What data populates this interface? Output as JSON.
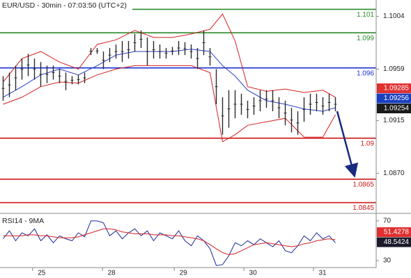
{
  "chart_data": [
    {
      "type": "ohlc",
      "title": "EUR/USD - 30min - 07:03:50 (UTC+2)",
      "xlim": [
        0,
        120
      ],
      "ylim": [
        1.0837,
        1.1018
      ],
      "yticks": [
        1.1004,
        1.0959,
        1.0915,
        {
          "value": 1.087,
          "label": "1.0870"
        }
      ],
      "xticks": [
        {
          "value": 10.4,
          "label": "25"
        },
        {
          "value": 32.7,
          "label": "28"
        },
        {
          "value": 55.6,
          "label": "29"
        },
        {
          "value": 77.8,
          "label": "30"
        },
        {
          "value": 100,
          "label": "31"
        }
      ],
      "color": "#2a2a2a",
      "x": [
        1,
        3,
        5,
        7,
        9,
        11,
        13,
        15,
        17,
        19,
        21,
        23,
        25,
        27,
        29,
        31,
        33,
        35,
        37,
        39,
        41,
        43,
        45,
        47,
        49,
        51,
        53,
        55,
        57,
        59,
        61,
        63,
        65,
        67,
        69,
        71,
        73,
        75,
        77,
        79,
        81,
        83,
        85,
        87,
        89,
        91,
        93,
        95,
        97,
        99,
        101,
        103,
        105,
        107
      ],
      "high": [
        1.0953,
        1.0956,
        1.0962,
        1.0968,
        1.0972,
        1.0968,
        1.0965,
        1.0962,
        1.0962,
        1.0959,
        1.0956,
        1.0953,
        1.0954,
        1.0956,
        1.0977,
        1.0977,
        1.0974,
        1.0977,
        1.098,
        1.0983,
        1.0983,
        1.0989,
        1.0992,
        1.0986,
        1.0983,
        1.098,
        1.0977,
        1.0978,
        1.0983,
        1.0982,
        1.098,
        1.0977,
        1.0992,
        1.0977,
        1.0959,
        1.0935,
        1.0941,
        1.0941,
        1.0938,
        1.0932,
        1.0935,
        1.0941,
        1.0941,
        1.0941,
        1.0935,
        1.0932,
        1.0926,
        1.0923,
        1.0935,
        1.0938,
        1.0938,
        1.0935,
        1.0938,
        1.0935
      ],
      "low": [
        1.0932,
        1.0935,
        1.0941,
        1.095,
        1.0953,
        1.095,
        1.0944,
        1.0947,
        1.095,
        1.0947,
        1.0941,
        1.0946,
        1.0946,
        1.0947,
        1.0971,
        1.0972,
        1.0959,
        1.0965,
        1.0968,
        1.0965,
        1.0968,
        1.0974,
        1.0977,
        1.0962,
        1.0968,
        1.0968,
        1.0968,
        1.0971,
        1.0971,
        1.0971,
        1.0968,
        1.0959,
        1.0971,
        1.0962,
        1.0929,
        1.0903,
        1.0909,
        1.0917,
        1.092,
        1.0917,
        1.092,
        1.0923,
        1.0926,
        1.0923,
        1.0917,
        1.0911,
        1.0905,
        1.0903,
        1.0914,
        1.092,
        1.0923,
        1.092,
        1.0923,
        1.0923
      ],
      "overlays": {
        "x": [
          1,
          7,
          13,
          19,
          25,
          31,
          37,
          43,
          49,
          55,
          61,
          67,
          71,
          75,
          79,
          85,
          91,
          97,
          103,
          107
        ],
        "series": [
          {
            "color": "#d42020",
            "values": [
              1.0948,
              1.0968,
              1.0974,
              1.0965,
              1.0959,
              1.098,
              1.0984,
              1.0992,
              1.0986,
              1.0986,
              1.0989,
              1.0993,
              1.1006,
              1.0983,
              1.0944,
              1.094,
              1.0942,
              1.0939,
              1.0941,
              1.0935
            ]
          },
          {
            "color": "#d42020",
            "values": [
              1.0929,
              1.0935,
              1.0944,
              1.0948,
              1.0947,
              1.0954,
              1.0959,
              1.0962,
              1.0962,
              1.0962,
              1.0962,
              1.0956,
              1.0897,
              1.0903,
              1.0911,
              1.0914,
              1.0917,
              1.0901,
              1.0901,
              1.092
            ]
          },
          {
            "color": "#2a3fc0",
            "values": [
              1.0935,
              1.0944,
              1.0954,
              1.0959,
              1.0954,
              1.0962,
              1.0971,
              1.0974,
              1.0974,
              1.0974,
              1.0976,
              1.0974,
              1.0962,
              1.0953,
              1.0941,
              1.0932,
              1.0929,
              1.0925,
              1.0923,
              1.0926
            ]
          }
        ]
      },
      "levels": [
        {
          "value": 1.101,
          "color": "#2a8a2a"
        },
        {
          "value": 1.099,
          "color": "#2a8a2a"
        },
        {
          "value": 1.096,
          "color": "#1a2fd0"
        },
        {
          "value": 1.09,
          "color": "#d01818"
        },
        {
          "value": 1.0865,
          "color": "#d01818"
        },
        {
          "value": 1.0845,
          "color": "#d01818"
        }
      ],
      "last_prices": [
        {
          "value": 1.09285,
          "color": "#e03030"
        },
        {
          "value": 1.09256,
          "color": "#1a3fc0"
        },
        {
          "value": 1.09254,
          "color": "#1a1a1a"
        }
      ]
    },
    {
      "type": "line",
      "title": "RSI14 - 9MA",
      "xlim": [
        0,
        120
      ],
      "ylim": [
        23,
        75.5
      ],
      "yticks": [
        70,
        30
      ],
      "x": [
        1,
        3,
        5,
        7,
        9,
        11,
        13,
        15,
        17,
        19,
        21,
        23,
        25,
        27,
        29,
        31,
        33,
        35,
        37,
        39,
        41,
        43,
        45,
        47,
        49,
        51,
        53,
        55,
        57,
        59,
        61,
        63,
        65,
        67,
        69,
        71,
        73,
        75,
        77,
        79,
        81,
        83,
        85,
        87,
        89,
        91,
        93,
        95,
        97,
        99,
        101,
        103,
        105,
        107
      ],
      "series": [
        {
          "color": "#1a2a9a",
          "values": [
            52,
            60,
            50,
            58,
            55,
            62,
            50,
            56,
            48,
            55,
            52,
            50,
            58,
            54,
            70,
            70,
            68,
            55,
            60,
            52,
            58,
            62,
            55,
            60,
            50,
            58,
            55,
            52,
            60,
            50,
            45,
            55,
            50,
            42,
            25,
            26,
            35,
            48,
            45,
            50,
            46,
            52,
            48,
            44,
            50,
            40,
            38,
            45,
            55,
            50,
            58,
            52,
            55,
            48
          ]
        },
        {
          "color": "#d42020",
          "values": [
            55,
            55,
            55,
            55,
            56,
            56,
            55,
            55,
            54,
            53,
            53,
            53,
            54,
            56,
            58,
            60,
            62,
            62,
            61,
            59,
            58,
            57,
            57,
            57,
            56,
            56,
            56,
            55,
            55,
            54,
            53,
            52,
            50,
            46,
            42,
            38,
            36,
            37,
            40,
            43,
            46,
            47,
            48,
            47,
            46,
            45,
            44,
            45,
            47,
            48,
            50,
            51,
            52,
            51
          ]
        }
      ],
      "last_values": [
        {
          "value": 51.4278,
          "color": "#e03030"
        },
        {
          "value": 48.5424,
          "color": "#1a1a2a"
        }
      ]
    }
  ]
}
